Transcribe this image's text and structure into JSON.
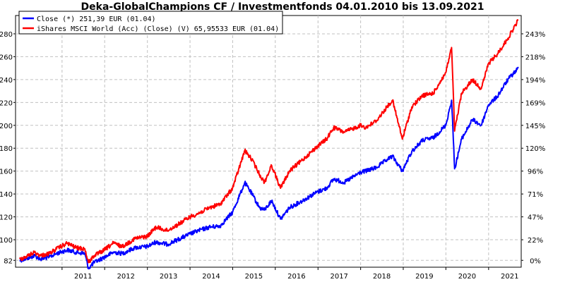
{
  "chart_data": {
    "type": "line",
    "title": "Deka-GlobalChampions CF / Investmentfonds 04.01.2010 bis 13.09.2021",
    "xlabel": "",
    "ylabel": "",
    "x_range": [
      "2010-01-04",
      "2021-09-13"
    ],
    "ylim": [
      76,
      296
    ],
    "y_ticks_left": [
      "82",
      "100",
      "120",
      "140",
      "160",
      "180",
      "200",
      "220",
      "240",
      "260",
      "280"
    ],
    "y_ticks_right": [
      "0%",
      "22%",
      "47%",
      "71%",
      "96%",
      "120%",
      "145%",
      "169%",
      "194%",
      "218%",
      "243%"
    ],
    "x_tick_labels": [
      "2011",
      "2012",
      "2013",
      "2014",
      "2015",
      "2016",
      "2017",
      "2018",
      "2019",
      "2020",
      "2021"
    ],
    "grid": true,
    "legend_position": "top-left",
    "series": [
      {
        "name": "Close (*) 251,39 EUR (01.04)",
        "color": "#0000ff",
        "points": [
          [
            "2010-01-04",
            82
          ],
          [
            "2010-03-15",
            84
          ],
          [
            "2010-05-10",
            86
          ],
          [
            "2010-07-01",
            83
          ],
          [
            "2010-09-15",
            85
          ],
          [
            "2010-11-15",
            88
          ],
          [
            "2011-02-15",
            91
          ],
          [
            "2011-05-01",
            89
          ],
          [
            "2011-07-15",
            88
          ],
          [
            "2011-08-15",
            75
          ],
          [
            "2011-10-01",
            80
          ],
          [
            "2011-12-15",
            84
          ],
          [
            "2012-03-15",
            89
          ],
          [
            "2012-06-01",
            88
          ],
          [
            "2012-09-15",
            93
          ],
          [
            "2012-12-31",
            94
          ],
          [
            "2013-03-15",
            98
          ],
          [
            "2013-06-20",
            96
          ],
          [
            "2013-09-15",
            100
          ],
          [
            "2013-12-31",
            105
          ],
          [
            "2014-03-15",
            108
          ],
          [
            "2014-06-15",
            111
          ],
          [
            "2014-09-15",
            112
          ],
          [
            "2014-12-31",
            124
          ],
          [
            "2015-03-15",
            142
          ],
          [
            "2015-04-15",
            150
          ],
          [
            "2015-06-15",
            140
          ],
          [
            "2015-08-20",
            128
          ],
          [
            "2015-09-30",
            126
          ],
          [
            "2015-12-01",
            134
          ],
          [
            "2016-02-15",
            118
          ],
          [
            "2016-05-01",
            128
          ],
          [
            "2016-08-01",
            133
          ],
          [
            "2016-12-31",
            142
          ],
          [
            "2017-03-15",
            145
          ],
          [
            "2017-05-15",
            153
          ],
          [
            "2017-08-15",
            150
          ],
          [
            "2017-12-31",
            159
          ],
          [
            "2018-02-15",
            160
          ],
          [
            "2018-05-15",
            163
          ],
          [
            "2018-08-15",
            170
          ],
          [
            "2018-10-01",
            173
          ],
          [
            "2018-12-24",
            160
          ],
          [
            "2019-03-15",
            177
          ],
          [
            "2019-06-15",
            187
          ],
          [
            "2019-09-15",
            189
          ],
          [
            "2019-12-31",
            200
          ],
          [
            "2020-02-19",
            222
          ],
          [
            "2020-03-16",
            162
          ],
          [
            "2020-05-15",
            188
          ],
          [
            "2020-08-15",
            205
          ],
          [
            "2020-10-30",
            200
          ],
          [
            "2020-12-31",
            218
          ],
          [
            "2021-03-15",
            225
          ],
          [
            "2021-06-15",
            240
          ],
          [
            "2021-09-13",
            250
          ]
        ]
      },
      {
        "name": "iShares MSCI World (Acc) (Close) (V) 65,95533 EUR (01.04)",
        "color": "#ff0000",
        "points": [
          [
            "2010-01-04",
            83
          ],
          [
            "2010-03-15",
            86
          ],
          [
            "2010-05-10",
            89
          ],
          [
            "2010-07-01",
            86
          ],
          [
            "2010-09-15",
            88
          ],
          [
            "2010-11-15",
            92
          ],
          [
            "2011-02-15",
            97
          ],
          [
            "2011-05-01",
            93
          ],
          [
            "2011-07-15",
            92
          ],
          [
            "2011-08-15",
            80
          ],
          [
            "2011-10-01",
            86
          ],
          [
            "2011-12-15",
            90
          ],
          [
            "2012-03-15",
            97
          ],
          [
            "2012-06-01",
            94
          ],
          [
            "2012-09-15",
            101
          ],
          [
            "2012-12-31",
            103
          ],
          [
            "2013-03-15",
            111
          ],
          [
            "2013-06-20",
            108
          ],
          [
            "2013-09-15",
            113
          ],
          [
            "2013-12-31",
            120
          ],
          [
            "2014-03-15",
            123
          ],
          [
            "2014-06-15",
            128
          ],
          [
            "2014-09-15",
            131
          ],
          [
            "2014-12-31",
            145
          ],
          [
            "2015-03-15",
            168
          ],
          [
            "2015-04-15",
            178
          ],
          [
            "2015-06-15",
            170
          ],
          [
            "2015-08-20",
            157
          ],
          [
            "2015-09-30",
            150
          ],
          [
            "2015-12-01",
            165
          ],
          [
            "2016-02-15",
            145
          ],
          [
            "2016-05-01",
            160
          ],
          [
            "2016-08-01",
            168
          ],
          [
            "2016-12-31",
            182
          ],
          [
            "2017-03-15",
            188
          ],
          [
            "2017-05-15",
            198
          ],
          [
            "2017-08-15",
            194
          ],
          [
            "2017-12-31",
            200
          ],
          [
            "2018-02-15",
            198
          ],
          [
            "2018-05-15",
            204
          ],
          [
            "2018-08-15",
            216
          ],
          [
            "2018-10-01",
            222
          ],
          [
            "2018-12-24",
            188
          ],
          [
            "2019-03-15",
            216
          ],
          [
            "2019-06-15",
            226
          ],
          [
            "2019-09-15",
            228
          ],
          [
            "2019-12-31",
            246
          ],
          [
            "2020-02-19",
            268
          ],
          [
            "2020-03-16",
            195
          ],
          [
            "2020-05-15",
            228
          ],
          [
            "2020-08-15",
            240
          ],
          [
            "2020-10-30",
            232
          ],
          [
            "2020-12-31",
            254
          ],
          [
            "2021-03-15",
            262
          ],
          [
            "2021-06-15",
            276
          ],
          [
            "2021-09-13",
            292
          ]
        ]
      }
    ]
  }
}
